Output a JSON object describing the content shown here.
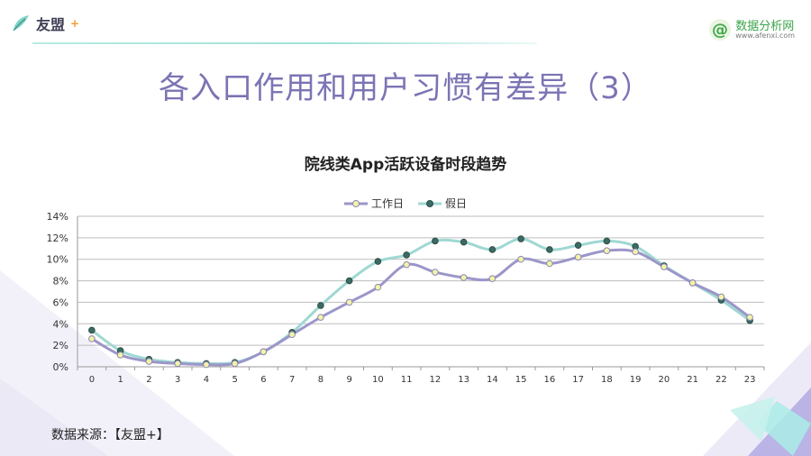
{
  "header": {
    "logo_text": "友盟",
    "logo_plus": "+",
    "brand_name": "数据分析网",
    "brand_url": "www.afenxi.com",
    "brand_glyph": "@"
  },
  "slide_title": "各入口作用和用户习惯有差异（3）",
  "source_note": "数据来源：【友盟+】",
  "colors": {
    "workday": "#9b96c9",
    "holiday": "#9fd8d3",
    "workday_marker": "#f3f3a6",
    "holiday_marker": "#3c6b63",
    "title": "#7b74b4"
  },
  "chart_data": {
    "type": "line",
    "title": "院线类App活跃设备时段趋势",
    "categories": [
      "0",
      "1",
      "2",
      "3",
      "4",
      "5",
      "6",
      "7",
      "8",
      "9",
      "10",
      "11",
      "12",
      "13",
      "14",
      "15",
      "16",
      "17",
      "18",
      "19",
      "20",
      "21",
      "22",
      "23"
    ],
    "ylim": [
      0,
      14
    ],
    "yticks": [
      "0%",
      "2%",
      "4%",
      "6%",
      "8%",
      "10%",
      "12%",
      "14%"
    ],
    "grid": true,
    "legend_position": "top",
    "series": [
      {
        "name": "工作日",
        "values": [
          2.6,
          1.1,
          0.5,
          0.3,
          0.2,
          0.3,
          1.4,
          3.0,
          4.6,
          6.0,
          7.4,
          9.5,
          8.8,
          8.3,
          8.2,
          10.0,
          9.6,
          10.2,
          10.8,
          10.7,
          9.3,
          7.8,
          6.5,
          4.6
        ]
      },
      {
        "name": "假日",
        "values": [
          3.4,
          1.5,
          0.7,
          0.4,
          0.3,
          0.4,
          1.4,
          3.2,
          5.7,
          8.0,
          9.8,
          10.4,
          11.7,
          11.6,
          10.9,
          11.9,
          10.9,
          11.3,
          11.7,
          11.2,
          9.4,
          7.8,
          6.2,
          4.3
        ]
      }
    ]
  }
}
